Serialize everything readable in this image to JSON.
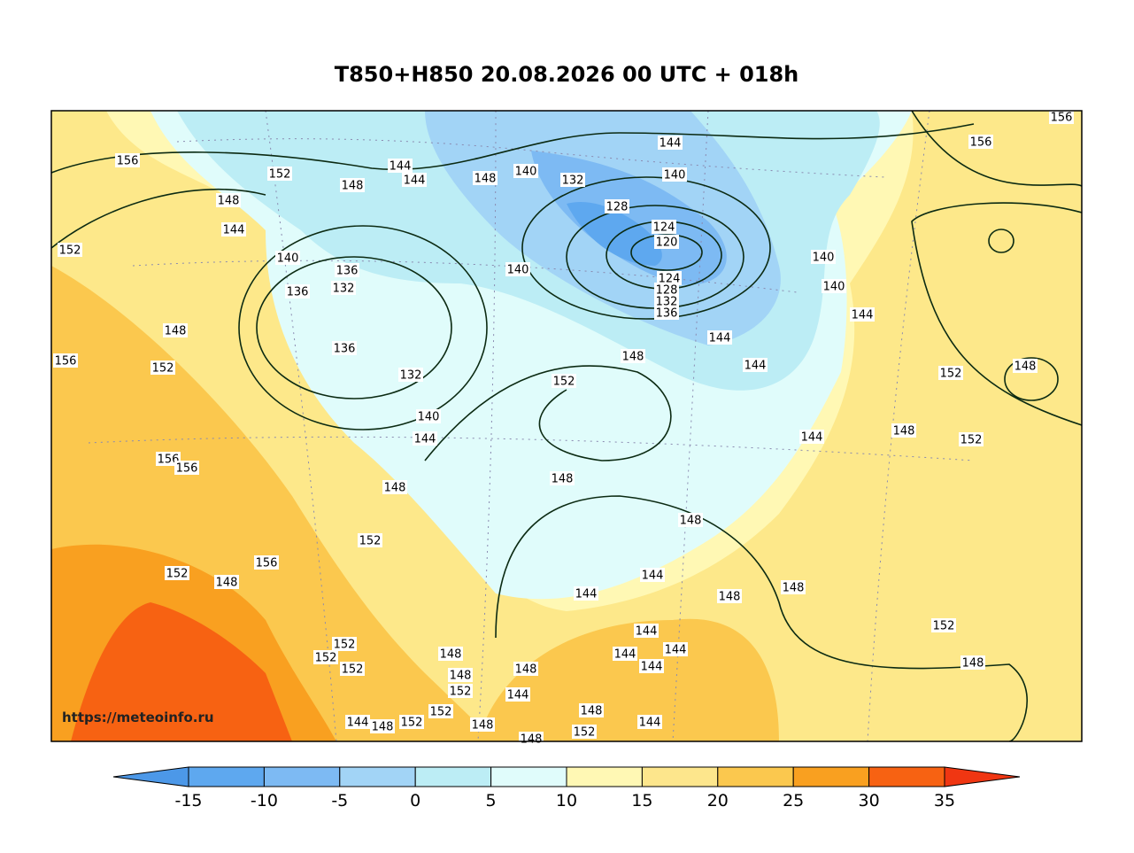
{
  "title": "T850+H850 20.08.2026 00 UTC + 018h",
  "watermark": "https://meteoinfo.ru",
  "colorbar": {
    "ticks": [
      -15,
      -10,
      -5,
      0,
      5,
      10,
      15,
      20,
      25,
      30,
      35
    ],
    "colors": [
      "#4c98e8",
      "#5ea8ef",
      "#7dbaf3",
      "#a2d4f6",
      "#bcedf5",
      "#e0fcfb",
      "#fff8b4",
      "#fde68c",
      "#fbc84e",
      "#f9a020",
      "#f76212",
      "#f03612"
    ]
  },
  "contour_labels": [
    156,
    152,
    148,
    144,
    140,
    136,
    136,
    132,
    148,
    152,
    156,
    136,
    132,
    140,
    144,
    148,
    152,
    156,
    156,
    156,
    148,
    152,
    152,
    152,
    152,
    140,
    148,
    132,
    128,
    124,
    120,
    124,
    128,
    132,
    136,
    140,
    144,
    140,
    144,
    148,
    152,
    144,
    140,
    140,
    144,
    144,
    148,
    152,
    152,
    148,
    156,
    156,
    148,
    148,
    144,
    148,
    148,
    144,
    144,
    144,
    144,
    144,
    148,
    148,
    148,
    152,
    144,
    148,
    152,
    144,
    144,
    148,
    152,
    152,
    148,
    148,
    152,
    148,
    148,
    144,
    144,
    152
  ]
}
